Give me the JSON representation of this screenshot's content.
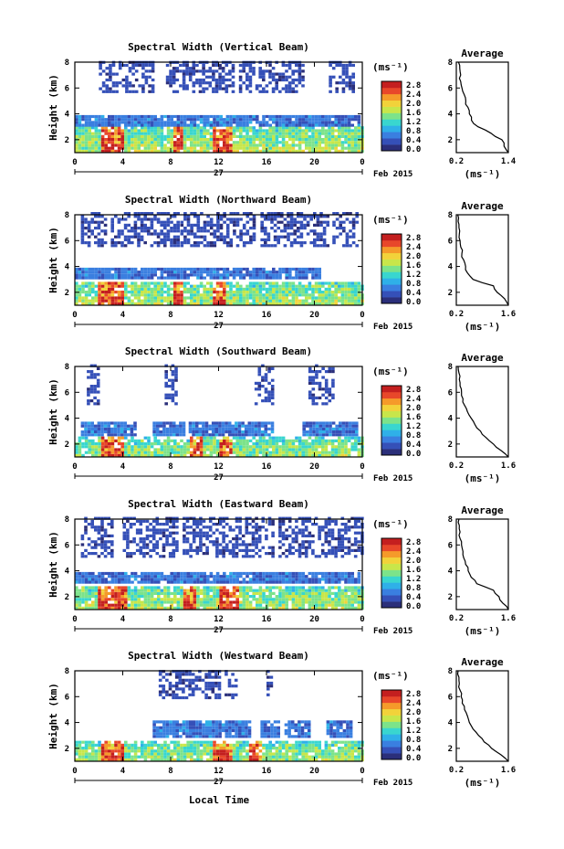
{
  "figure": {
    "xlabel": "Local Time",
    "date_label": "Feb 2015",
    "day_label": "27",
    "ylabel": "Height (km)",
    "unit_label": "(ms⁻¹)",
    "avg_title": "Average",
    "avg_xlabel": "(ms⁻¹)"
  },
  "colorbar": {
    "ticks": [
      "2.8",
      "2.4",
      "2.0",
      "1.6",
      "1.2",
      "0.8",
      "0.4",
      "0.0"
    ],
    "colors": [
      "#2b2f7a",
      "#3550b8",
      "#3a7fe0",
      "#2fb0e8",
      "#39d6cf",
      "#7ce38a",
      "#c8e64a",
      "#f2d23a",
      "#f59a2a",
      "#e8472a",
      "#c41f1f"
    ]
  },
  "chart_data": [
    {
      "type": "heatmap",
      "title": "Spectral Width (Vertical Beam)",
      "xlabel": "Local Time",
      "ylabel": "Height (km)",
      "x_ticks": [
        "0",
        "4",
        "8",
        "12",
        "16",
        "20",
        "0"
      ],
      "y_ticks": [
        "2",
        "4",
        "6",
        "8"
      ],
      "xlim": [
        0,
        24
      ],
      "ylim": [
        1,
        8
      ],
      "colorbar": {
        "ticks": [
          "2.8",
          "2.4",
          "2.0",
          "1.6",
          "1.2",
          "0.8",
          "0.4",
          "0.0"
        ],
        "range": [
          0,
          2.8
        ]
      },
      "upper_layer": {
        "bottom_km": 5.6,
        "top_km": 7.9,
        "spans": [
          [
            2.0,
            6.5
          ],
          [
            7.6,
            13.2
          ],
          [
            13.7,
            19.0
          ],
          [
            21.2,
            23.2
          ]
        ]
      },
      "mid_layer": {
        "bottom_km": 3.0,
        "top_km": 3.8,
        "spans": [
          [
            0.0,
            23.8
          ]
        ]
      },
      "lower_layer": {
        "top_km": 3.0,
        "high_width_hours": [
          [
            2.0,
            4.0
          ],
          [
            8.0,
            9.0
          ],
          [
            11.5,
            13.0
          ]
        ]
      },
      "average_profile": {
        "xlim": [
          0.2,
          1.4
        ],
        "x_ticks": [
          "0.2",
          "1.4"
        ],
        "y_ticks": [
          "2",
          "4",
          "6",
          "8"
        ],
        "height_km": [
          1.0,
          1.5,
          2.0,
          2.5,
          3.0,
          3.5,
          4.0,
          4.5,
          5.0,
          5.5,
          6.0,
          6.5,
          7.0,
          7.5,
          8.0
        ],
        "width": [
          1.4,
          1.3,
          1.25,
          1.0,
          0.7,
          0.55,
          0.5,
          0.47,
          0.42,
          0.38,
          0.33,
          0.3,
          0.3,
          0.28,
          0.25
        ]
      }
    },
    {
      "type": "heatmap",
      "title": "Spectral Width (Northward Beam)",
      "xlabel": "Local Time",
      "ylabel": "Height (km)",
      "x_ticks": [
        "0",
        "4",
        "8",
        "12",
        "16",
        "20",
        "0"
      ],
      "y_ticks": [
        "2",
        "4",
        "6",
        "8"
      ],
      "xlim": [
        0,
        24
      ],
      "ylim": [
        1,
        8
      ],
      "colorbar": {
        "ticks": [
          "2.8",
          "2.4",
          "2.0",
          "1.6",
          "1.2",
          "0.8",
          "0.4",
          "0.0"
        ],
        "range": [
          0,
          2.8
        ]
      },
      "upper_layer": {
        "bottom_km": 5.5,
        "top_km": 8.0,
        "spans": [
          [
            0.5,
            2.5
          ],
          [
            3.0,
            8.5
          ],
          [
            8.8,
            15.0
          ],
          [
            15.5,
            21.0
          ],
          [
            21.5,
            23.5
          ]
        ]
      },
      "mid_layer": {
        "bottom_km": 3.0,
        "top_km": 3.8,
        "spans": [
          [
            0.0,
            20.5
          ]
        ]
      },
      "lower_layer": {
        "top_km": 2.8,
        "high_width_hours": [
          [
            1.8,
            4.0
          ],
          [
            8.0,
            9.0
          ],
          [
            11.5,
            12.5
          ]
        ]
      },
      "average_profile": {
        "xlim": [
          0.2,
          1.6
        ],
        "x_ticks": [
          "0.2",
          "1.6"
        ],
        "y_ticks": [
          "2",
          "4",
          "6",
          "8"
        ],
        "height_km": [
          1.0,
          1.5,
          2.0,
          2.5,
          3.0,
          3.5,
          4.0,
          4.5,
          5.0,
          5.5,
          6.0,
          6.5,
          7.0,
          7.5,
          8.0
        ],
        "width": [
          1.6,
          1.5,
          1.3,
          1.2,
          0.65,
          0.5,
          0.45,
          0.4,
          0.35,
          0.32,
          0.3,
          0.28,
          0.27,
          0.25,
          0.24
        ]
      }
    },
    {
      "type": "heatmap",
      "title": "Spectral Width (Southward Beam)",
      "xlabel": "Local Time",
      "ylabel": "Height (km)",
      "x_ticks": [
        "0",
        "4",
        "8",
        "12",
        "16",
        "20",
        "0"
      ],
      "y_ticks": [
        "2",
        "4",
        "6",
        "8"
      ],
      "xlim": [
        0,
        24
      ],
      "ylim": [
        1,
        8
      ],
      "colorbar": {
        "ticks": [
          "2.8",
          "2.4",
          "2.0",
          "1.6",
          "1.2",
          "0.8",
          "0.4",
          "0.0"
        ],
        "range": [
          0,
          2.8
        ]
      },
      "upper_layer": {
        "bottom_km": 5.0,
        "top_km": 8.0,
        "spans": [
          [
            1.0,
            2.0
          ],
          [
            7.5,
            8.5
          ],
          [
            15.0,
            16.5
          ],
          [
            19.5,
            21.5
          ]
        ]
      },
      "mid_layer": {
        "bottom_km": 2.6,
        "top_km": 3.6,
        "spans": [
          [
            0.5,
            5.0
          ],
          [
            6.5,
            9.0
          ],
          [
            9.5,
            16.5
          ],
          [
            19.0,
            23.5
          ]
        ]
      },
      "lower_layer": {
        "top_km": 2.4,
        "high_width_hours": [
          [
            2.0,
            4.0
          ],
          [
            9.5,
            10.5
          ],
          [
            12.0,
            13.0
          ]
        ]
      },
      "average_profile": {
        "xlim": [
          0.2,
          1.6
        ],
        "x_ticks": [
          "0.2",
          "1.6"
        ],
        "y_ticks": [
          "2",
          "4",
          "6",
          "8"
        ],
        "height_km": [
          1.0,
          1.5,
          2.0,
          2.5,
          3.0,
          3.5,
          4.0,
          4.5,
          5.0,
          5.5,
          6.0,
          6.5,
          7.0,
          7.5,
          8.0
        ],
        "width": [
          1.6,
          1.4,
          1.2,
          1.0,
          0.85,
          0.7,
          0.6,
          0.5,
          0.42,
          0.38,
          0.34,
          0.3,
          0.28,
          0.27,
          0.25
        ]
      }
    },
    {
      "type": "heatmap",
      "title": "Spectral Width (Eastward Beam)",
      "xlabel": "Local Time",
      "ylabel": "Height (km)",
      "x_ticks": [
        "0",
        "4",
        "8",
        "12",
        "16",
        "20",
        "0"
      ],
      "y_ticks": [
        "2",
        "4",
        "6",
        "8"
      ],
      "xlim": [
        0,
        24
      ],
      "ylim": [
        1,
        8
      ],
      "colorbar": {
        "ticks": [
          "2.8",
          "2.4",
          "2.0",
          "1.6",
          "1.2",
          "0.8",
          "0.4",
          "0.0"
        ],
        "range": [
          0,
          2.8
        ]
      },
      "upper_layer": {
        "bottom_km": 5.0,
        "top_km": 8.0,
        "spans": [
          [
            0.5,
            3.0
          ],
          [
            4.0,
            8.5
          ],
          [
            9.0,
            16.5
          ],
          [
            17.0,
            24.0
          ]
        ]
      },
      "mid_layer": {
        "bottom_km": 3.0,
        "top_km": 3.9,
        "spans": [
          [
            0.0,
            23.8
          ]
        ]
      },
      "lower_layer": {
        "top_km": 2.8,
        "high_width_hours": [
          [
            1.8,
            4.2
          ],
          [
            9.0,
            10.0
          ],
          [
            12.0,
            13.5
          ]
        ]
      },
      "average_profile": {
        "xlim": [
          0.2,
          1.6
        ],
        "x_ticks": [
          "0.2",
          "1.6"
        ],
        "y_ticks": [
          "2",
          "4",
          "6",
          "8"
        ],
        "height_km": [
          1.0,
          1.5,
          2.0,
          2.5,
          3.0,
          3.5,
          4.0,
          4.5,
          5.0,
          5.5,
          6.0,
          6.5,
          7.0,
          7.5,
          8.0
        ],
        "width": [
          1.6,
          1.45,
          1.35,
          1.2,
          0.75,
          0.6,
          0.52,
          0.45,
          0.4,
          0.38,
          0.34,
          0.3,
          0.3,
          0.28,
          0.27
        ]
      }
    },
    {
      "type": "heatmap",
      "title": "Spectral Width (Westward Beam)",
      "xlabel": "Local Time",
      "ylabel": "Height (km)",
      "x_ticks": [
        "0",
        "4",
        "8",
        "12",
        "16",
        "20",
        "0"
      ],
      "y_ticks": [
        "2",
        "4",
        "6",
        "8"
      ],
      "xlim": [
        0,
        24
      ],
      "ylim": [
        1,
        8
      ],
      "colorbar": {
        "ticks": [
          "2.8",
          "2.4",
          "2.0",
          "1.6",
          "1.2",
          "0.8",
          "0.4",
          "0.0"
        ],
        "range": [
          0,
          2.8
        ]
      },
      "upper_layer": {
        "bottom_km": 5.8,
        "top_km": 8.0,
        "spans": [
          [
            7.0,
            12.0
          ],
          [
            12.5,
            13.5
          ],
          [
            16.0,
            16.5
          ]
        ]
      },
      "mid_layer": {
        "bottom_km": 2.8,
        "top_km": 4.0,
        "spans": [
          [
            6.5,
            14.5
          ],
          [
            15.5,
            17.0
          ],
          [
            17.5,
            19.5
          ],
          [
            21.0,
            23.0
          ]
        ]
      },
      "lower_layer": {
        "top_km": 2.5,
        "high_width_hours": [
          [
            2.0,
            4.0
          ],
          [
            11.5,
            13.0
          ],
          [
            14.5,
            15.5
          ]
        ]
      },
      "average_profile": {
        "xlim": [
          0.2,
          1.6
        ],
        "x_ticks": [
          "0.2",
          "1.6"
        ],
        "y_ticks": [
          "2",
          "4",
          "6",
          "8"
        ],
        "height_km": [
          1.0,
          1.5,
          2.0,
          2.5,
          3.0,
          3.5,
          4.0,
          4.5,
          5.0,
          5.5,
          6.0,
          6.5,
          7.0,
          7.5,
          8.0
        ],
        "width": [
          1.6,
          1.4,
          1.15,
          0.95,
          0.8,
          0.65,
          0.55,
          0.5,
          0.42,
          0.36,
          0.33,
          0.3,
          0.28,
          0.27,
          0.25
        ]
      }
    }
  ]
}
